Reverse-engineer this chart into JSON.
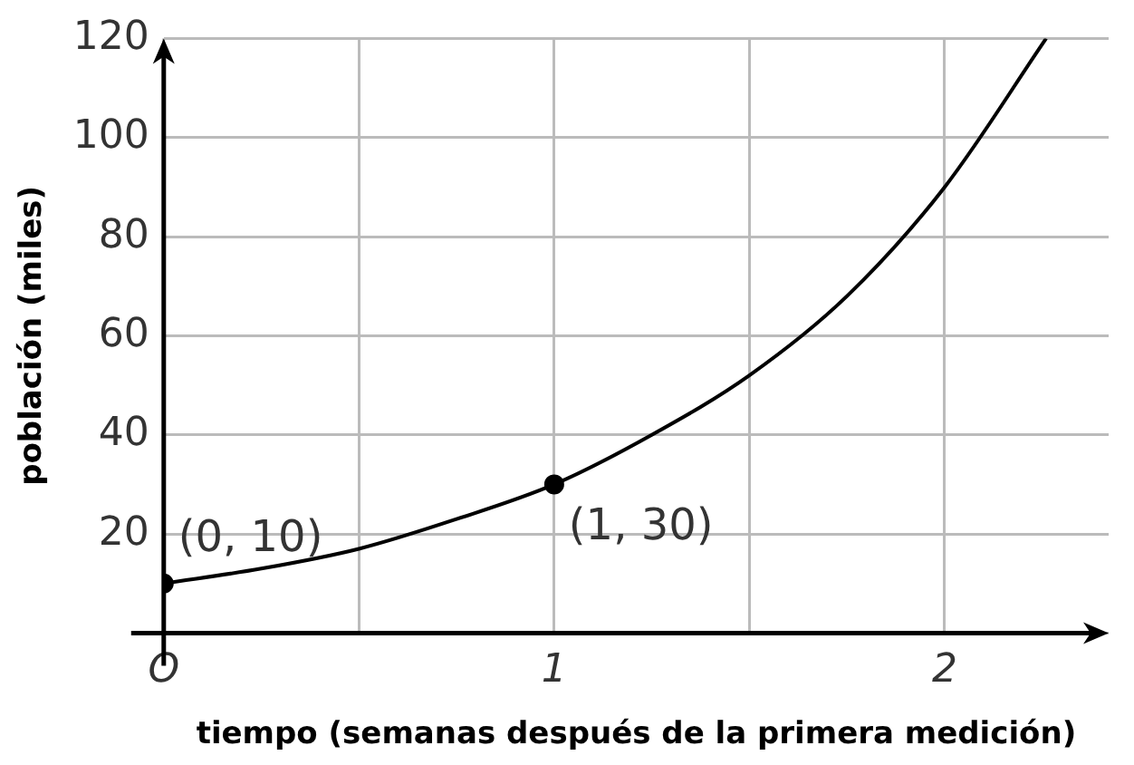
{
  "chart_data": {
    "type": "line",
    "xlabel": "tiempo (semanas después de la primera medición)",
    "ylabel": "población (miles)",
    "xlim": [
      0,
      2.42
    ],
    "ylim": [
      0,
      120
    ],
    "xticks": [
      {
        "value": 0,
        "label": "O"
      },
      {
        "value": 0.5,
        "label": null
      },
      1,
      {
        "value": 1.5,
        "label": null
      },
      2
    ],
    "yticks": [
      {
        "value": 0,
        "label": null
      },
      20,
      40,
      60,
      80,
      100,
      120
    ],
    "grid": true,
    "legend": false,
    "series": [
      {
        "type": "line",
        "color": "#000000",
        "marker": "none",
        "x": [
          0,
          0.25,
          0.5,
          0.75,
          1,
          1.25,
          1.5,
          1.75,
          2,
          2.26
        ],
        "values": [
          10,
          13,
          17,
          23,
          30,
          40,
          52,
          68,
          90,
          120
        ]
      },
      {
        "type": "scatter",
        "color": "#000000",
        "marker": "circle",
        "x": [
          0,
          1
        ],
        "values": [
          10,
          30
        ]
      }
    ],
    "annotations": [
      {
        "text": "(0, 10)",
        "x": 0,
        "y": 10
      },
      {
        "text": "(1, 30)",
        "x": 1,
        "y": 30
      }
    ]
  }
}
